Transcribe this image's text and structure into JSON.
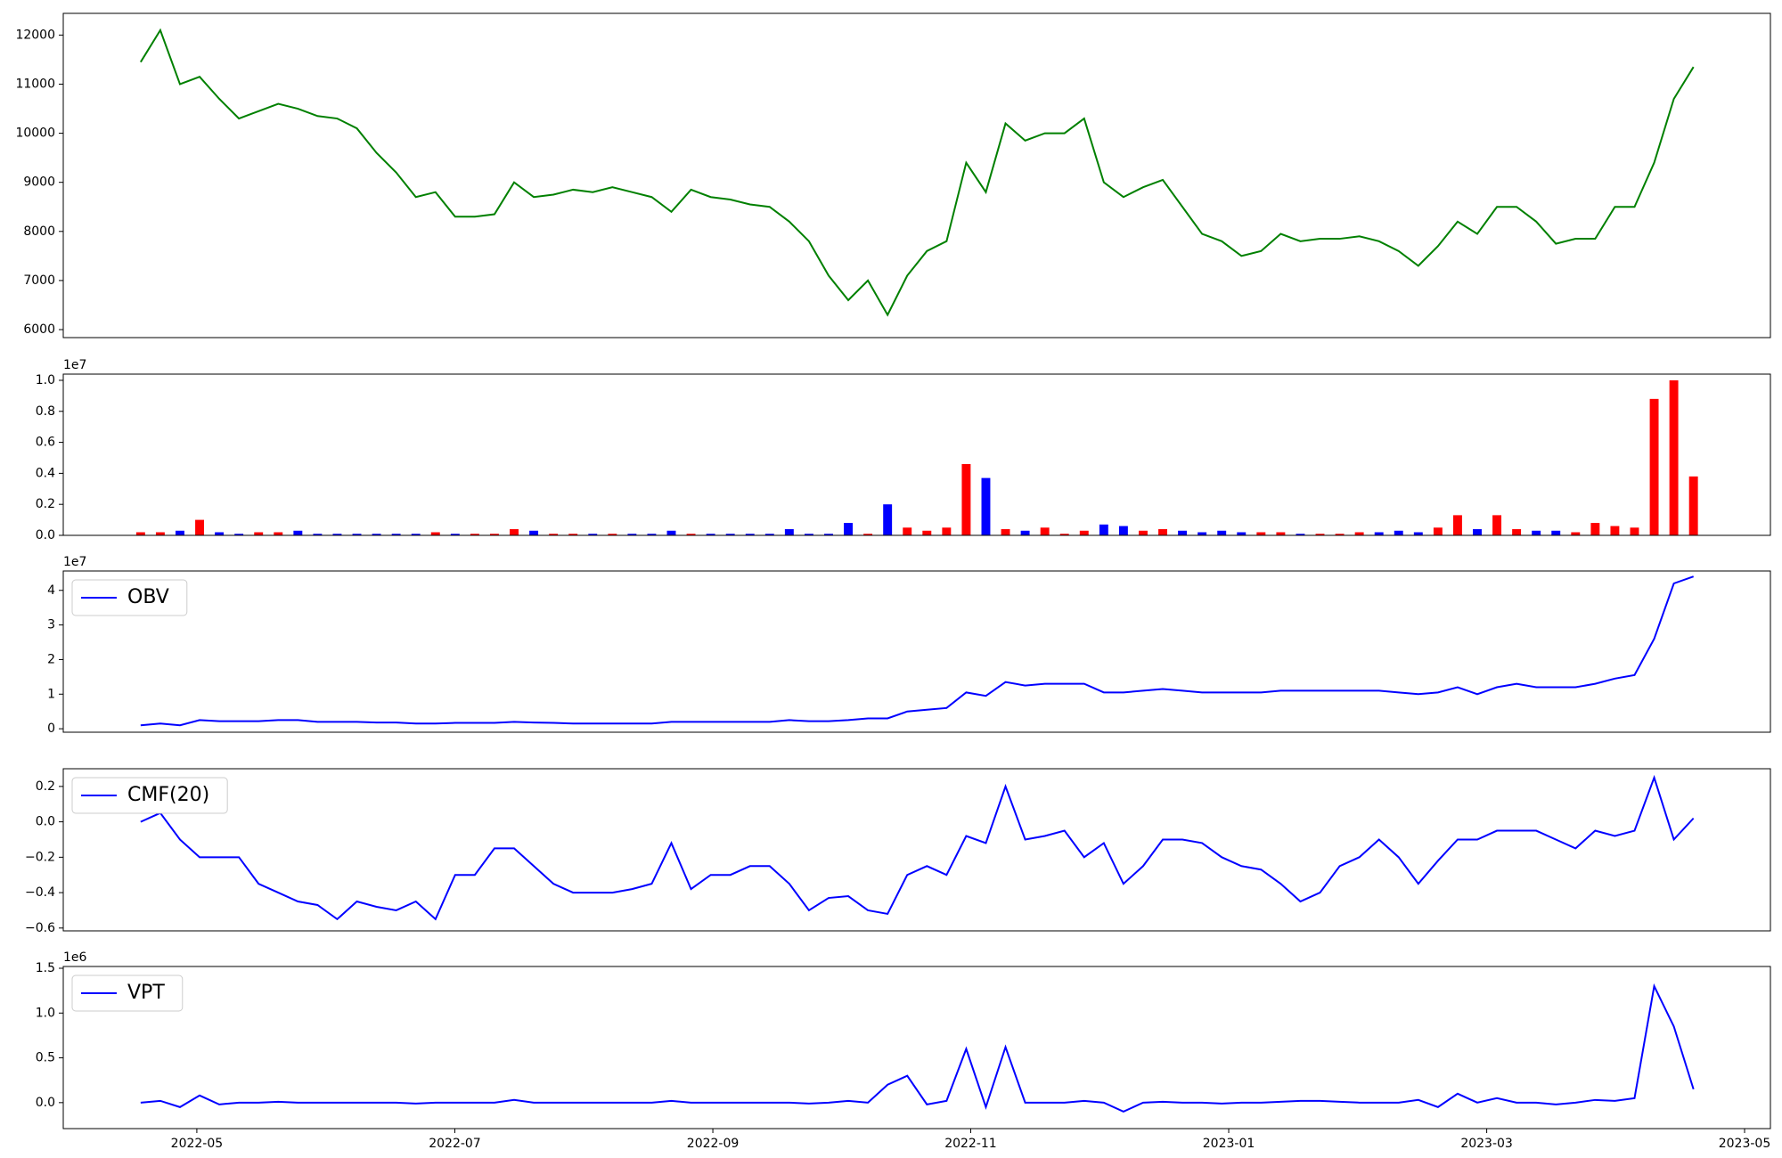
{
  "chart_data": {
    "type": "stacked-panels",
    "x": [
      2022.297,
      2022.3097,
      2022.3224,
      2022.3351,
      2022.3478,
      2022.3605,
      2022.3732,
      2022.3859,
      2022.3986,
      2022.4113,
      2022.424,
      2022.4367,
      2022.4494,
      2022.4621,
      2022.4748,
      2022.4875,
      2022.5002,
      2022.5129,
      2022.5256,
      2022.5383,
      2022.551,
      2022.5637,
      2022.5764,
      2022.5891,
      2022.6018,
      2022.6145,
      2022.6272,
      2022.6399,
      2022.6526,
      2022.6653,
      2022.678,
      2022.6907,
      2022.7034,
      2022.7161,
      2022.7288,
      2022.7415,
      2022.7542,
      2022.7669,
      2022.7796,
      2022.7923,
      2022.805,
      2022.8177,
      2022.8304,
      2022.8431,
      2022.8558,
      2022.8685,
      2022.8812,
      2022.8939,
      2022.9066,
      2022.9193,
      2022.932,
      2022.9447,
      2022.9574,
      2022.9701,
      2022.9828,
      2022.9955,
      2023.0082,
      2023.0209,
      2023.0336,
      2023.0463,
      2023.059,
      2023.0717,
      2023.0844,
      2023.0971,
      2023.1098,
      2023.1225,
      2023.1352,
      2023.1479,
      2023.1606,
      2023.1733,
      2023.186,
      2023.1987,
      2023.2114,
      2023.2241,
      2023.2368,
      2023.2495,
      2023.2622,
      2023.2749,
      2023.2876,
      2023.3003
    ],
    "xlim": [
      2022.247,
      2023.35
    ],
    "xticks": [
      {
        "value": 2022.3333,
        "label": "2022-05"
      },
      {
        "value": 2022.5,
        "label": "2022-07"
      },
      {
        "value": 2022.6667,
        "label": "2022-09"
      },
      {
        "value": 2022.8333,
        "label": "2022-11"
      },
      {
        "value": 2023.0,
        "label": "2023-01"
      },
      {
        "value": 2023.1667,
        "label": "2023-03"
      },
      {
        "value": 2023.3333,
        "label": "2023-05"
      }
    ],
    "panels": [
      {
        "type": "line",
        "ylim": [
          5837,
          12442
        ],
        "yticks": [
          6000,
          7000,
          8000,
          9000,
          10000,
          11000,
          12000
        ],
        "series": [
          {
            "color": "green",
            "values": [
              11450,
              12100,
              11000,
              11150,
              10700,
              10300,
              10450,
              10600,
              10500,
              10350,
              10300,
              10100,
              9600,
              9200,
              8700,
              8800,
              8300,
              8300,
              8350,
              9000,
              8700,
              8750,
              8850,
              8800,
              8900,
              8800,
              8700,
              8400,
              8850,
              8700,
              8650,
              8550,
              8500,
              8200,
              7800,
              7100,
              6600,
              7000,
              6300,
              7100,
              7600,
              7800,
              9400,
              8800,
              10200,
              9850,
              10000,
              10000,
              10300,
              9000,
              8700,
              8900,
              9050,
              8500,
              7950,
              7800,
              7500,
              7600,
              7950,
              7800,
              7850,
              7850,
              7900,
              7800,
              7600,
              7300,
              7700,
              8200,
              7950,
              8500,
              8500,
              8200,
              7750,
              7850,
              7850,
              8500,
              8500,
              9400,
              10700,
              11350
            ]
          }
        ]
      },
      {
        "type": "bar",
        "offset_label": "1e7",
        "ylim": [
          0,
          1.04
        ],
        "yticks": [
          {
            "value": 0,
            "label": "0.0"
          },
          {
            "value": 0.2,
            "label": "0.2"
          },
          {
            "value": 0.4,
            "label": "0.4"
          },
          {
            "value": 0.6,
            "label": "0.6"
          },
          {
            "value": 0.8,
            "label": "0.8"
          },
          {
            "value": 1.0,
            "label": "1.0"
          }
        ],
        "colors": {
          "up": "red",
          "down": "blue"
        },
        "series": [
          {
            "values": [
              0.02,
              0.02,
              0.03,
              0.1,
              0.02,
              0.01,
              0.02,
              0.02,
              0.03,
              0.01,
              0.01,
              0.01,
              0.01,
              0.01,
              0.01,
              0.02,
              0.01,
              0.01,
              0.01,
              0.04,
              0.03,
              0.01,
              0.01,
              0.01,
              0.01,
              0.01,
              0.01,
              0.03,
              0.01,
              0.01,
              0.01,
              0.01,
              0.01,
              0.04,
              0.01,
              0.01,
              0.08,
              0.01,
              0.2,
              0.05,
              0.03,
              0.05,
              0.46,
              0.37,
              0.04,
              0.03,
              0.05,
              0.01,
              0.03,
              0.07,
              0.06,
              0.03,
              0.04,
              0.03,
              0.02,
              0.03,
              0.02,
              0.02,
              0.02,
              0.01,
              0.01,
              0.01,
              0.02,
              0.02,
              0.03,
              0.02,
              0.05,
              0.13,
              0.04,
              0.13,
              0.04,
              0.03,
              0.03,
              0.02,
              0.08,
              0.06,
              0.05,
              0.88,
              1.0,
              0.38
            ]
          }
        ]
      },
      {
        "type": "line",
        "offset_label": "1e7",
        "ylim": [
          -0.1,
          4.56
        ],
        "yticks": [
          0,
          1,
          2,
          3,
          4
        ],
        "legend": "upper left",
        "series": [
          {
            "name": "OBV",
            "color": "blue",
            "values": [
              0.1,
              0.15,
              0.1,
              0.25,
              0.22,
              0.22,
              0.22,
              0.25,
              0.25,
              0.2,
              0.2,
              0.2,
              0.18,
              0.18,
              0.15,
              0.15,
              0.17,
              0.17,
              0.17,
              0.2,
              0.18,
              0.17,
              0.15,
              0.15,
              0.15,
              0.15,
              0.15,
              0.2,
              0.2,
              0.2,
              0.2,
              0.2,
              0.2,
              0.25,
              0.22,
              0.22,
              0.25,
              0.3,
              0.3,
              0.5,
              0.55,
              0.6,
              1.05,
              0.95,
              1.35,
              1.25,
              1.3,
              1.3,
              1.3,
              1.05,
              1.05,
              1.1,
              1.15,
              1.1,
              1.05,
              1.05,
              1.05,
              1.05,
              1.1,
              1.1,
              1.1,
              1.1,
              1.1,
              1.1,
              1.05,
              1.0,
              1.05,
              1.2,
              1.0,
              1.2,
              1.3,
              1.2,
              1.2,
              1.2,
              1.3,
              1.45,
              1.55,
              2.6,
              4.2,
              4.4
            ]
          }
        ]
      },
      {
        "type": "line",
        "ylim": [
          -0.616,
          0.3
        ],
        "yticks": [
          {
            "value": -0.6,
            "label": "−0.6"
          },
          {
            "value": -0.4,
            "label": "−0.4"
          },
          {
            "value": -0.2,
            "label": "−0.2"
          },
          {
            "value": 0,
            "label": "0.0"
          },
          {
            "value": 0.2,
            "label": "0.2"
          }
        ],
        "legend": "upper left",
        "series": [
          {
            "name": "CMF(20)",
            "color": "blue",
            "values": [
              0.0,
              0.05,
              -0.1,
              -0.2,
              -0.2,
              -0.2,
              -0.35,
              -0.4,
              -0.45,
              -0.47,
              -0.55,
              -0.45,
              -0.48,
              -0.5,
              -0.45,
              -0.55,
              -0.3,
              -0.3,
              -0.15,
              -0.15,
              -0.25,
              -0.35,
              -0.4,
              -0.4,
              -0.4,
              -0.38,
              -0.35,
              -0.12,
              -0.38,
              -0.3,
              -0.3,
              -0.25,
              -0.25,
              -0.35,
              -0.5,
              -0.43,
              -0.42,
              -0.5,
              -0.52,
              -0.3,
              -0.25,
              -0.3,
              -0.08,
              -0.12,
              0.2,
              -0.1,
              -0.08,
              -0.05,
              -0.2,
              -0.12,
              -0.35,
              -0.25,
              -0.1,
              -0.1,
              -0.12,
              -0.2,
              -0.25,
              -0.27,
              -0.35,
              -0.45,
              -0.4,
              -0.25,
              -0.2,
              -0.1,
              -0.2,
              -0.35,
              -0.22,
              -0.1,
              -0.1,
              -0.05,
              -0.05,
              -0.05,
              -0.1,
              -0.15,
              -0.05,
              -0.08,
              -0.05,
              0.25,
              -0.1,
              0.02
            ]
          }
        ]
      },
      {
        "type": "line",
        "offset_label": "1e6",
        "ylim": [
          -0.29,
          1.52
        ],
        "yticks": [
          {
            "value": 0,
            "label": "0.0"
          },
          {
            "value": 0.5,
            "label": "0.5"
          },
          {
            "value": 1.0,
            "label": "1.0"
          },
          {
            "value": 1.5,
            "label": "1.5"
          }
        ],
        "legend": "upper left",
        "series": [
          {
            "name": "VPT",
            "color": "blue",
            "values": [
              0.0,
              0.02,
              -0.05,
              0.08,
              -0.02,
              0.0,
              0.0,
              0.01,
              0.0,
              0.0,
              0.0,
              0.0,
              0.0,
              0.0,
              -0.01,
              0.0,
              0.0,
              0.0,
              0.0,
              0.03,
              0.0,
              0.0,
              0.0,
              0.0,
              0.0,
              0.0,
              0.0,
              0.02,
              0.0,
              0.0,
              0.0,
              0.0,
              0.0,
              0.0,
              -0.01,
              0.0,
              0.02,
              0.0,
              0.2,
              0.3,
              -0.02,
              0.02,
              0.6,
              -0.05,
              0.62,
              0.0,
              0.0,
              0.0,
              0.02,
              0.0,
              -0.1,
              0.0,
              0.01,
              0.0,
              0.0,
              -0.01,
              0.0,
              0.0,
              0.01,
              0.02,
              0.02,
              0.01,
              0.0,
              0.0,
              0.0,
              0.03,
              -0.05,
              0.1,
              0.0,
              0.05,
              0.0,
              0.0,
              -0.02,
              0.0,
              0.03,
              0.02,
              0.05,
              1.3,
              0.85,
              0.15
            ]
          }
        ]
      }
    ]
  }
}
